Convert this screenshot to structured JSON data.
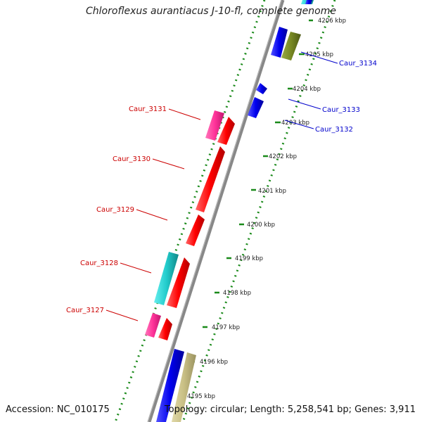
{
  "title": "Chloroflexus aurantiacus J-10-fl, complete genome",
  "accession": "Accession: NC_010175",
  "topology": "Topology: circular; Length: 5,258,541 bp; Genes: 3,911",
  "colors": {
    "red": "#ff0000",
    "blue": "#0000ee",
    "pink": "#ff3399",
    "cyan": "#22cccc",
    "olive": "#778822",
    "tan": "#c8bf84",
    "ruler": "#1a8a1a",
    "backbone": "#888888",
    "label_red": "#cc0000",
    "label_blue": "#0000cc"
  },
  "ticks": [
    {
      "label": "4206 kbp"
    },
    {
      "label": "4205 kbp"
    },
    {
      "label": "4204 kbp"
    },
    {
      "label": "4203 kbp"
    },
    {
      "label": "4202 kbp"
    },
    {
      "label": "4201 kbp"
    },
    {
      "label": "4200 kbp"
    },
    {
      "label": "4199 kbp"
    },
    {
      "label": "4198 kbp"
    },
    {
      "label": "4197 kbp"
    },
    {
      "label": "4196 kbp"
    },
    {
      "label": "4195 kbp"
    }
  ],
  "gene_labels": [
    {
      "name": "Caur_3134",
      "strand": "forward"
    },
    {
      "name": "Caur_3133",
      "strand": "forward"
    },
    {
      "name": "Caur_3132",
      "strand": "forward"
    },
    {
      "name": "Caur_3131",
      "strand": "reverse"
    },
    {
      "name": "Caur_3130",
      "strand": "reverse"
    },
    {
      "name": "Caur_3129",
      "strand": "reverse"
    },
    {
      "name": "Caur_3128",
      "strand": "reverse"
    },
    {
      "name": "Caur_3127",
      "strand": "reverse"
    }
  ]
}
